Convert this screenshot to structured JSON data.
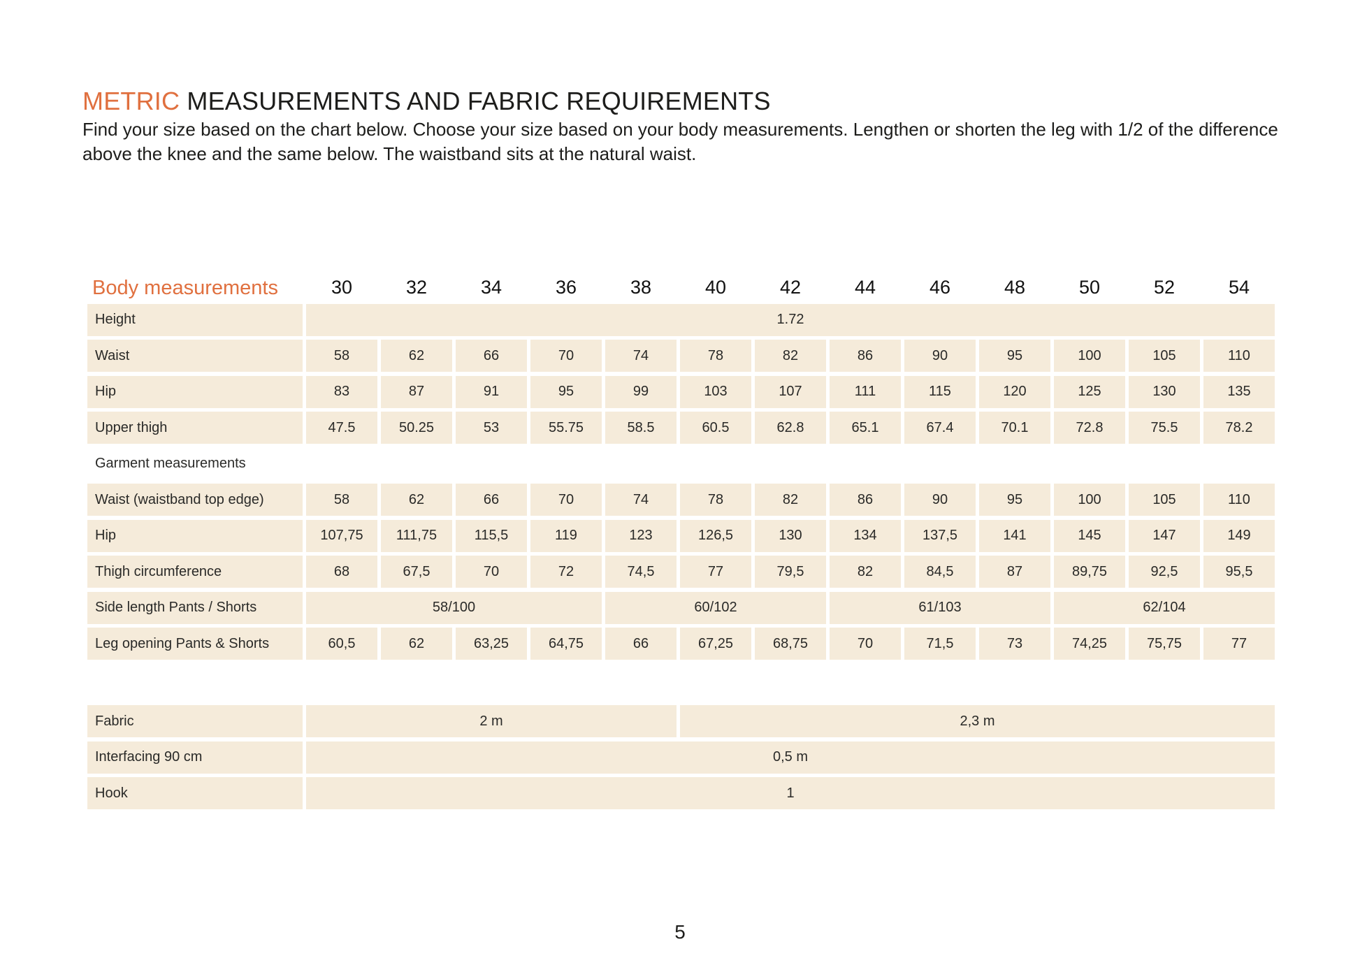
{
  "title": {
    "accent": "METRIC",
    "rest": " MEASUREMENTS AND FABRIC REQUIREMENTS"
  },
  "intro": "Find your size based on the chart below. Choose your size based on your body measurements. Lengthen or shorten the leg with 1/2 of the difference above the knee and the same below. The waistband sits at the natural waist.",
  "colors": {
    "accent": "#e0703f",
    "cell": "#f5ebda"
  },
  "table": {
    "header_label": "Body measurements",
    "sizes": [
      "30",
      "32",
      "34",
      "36",
      "38",
      "40",
      "42",
      "44",
      "46",
      "48",
      "50",
      "52",
      "54"
    ],
    "rows": [
      {
        "label": "Height",
        "cells": [
          {
            "v": "1.72",
            "span": 13
          }
        ]
      },
      {
        "label": "Waist",
        "cells": [
          {
            "v": "58"
          },
          {
            "v": "62"
          },
          {
            "v": "66"
          },
          {
            "v": "70"
          },
          {
            "v": "74"
          },
          {
            "v": "78"
          },
          {
            "v": "82"
          },
          {
            "v": "86"
          },
          {
            "v": "90"
          },
          {
            "v": "95"
          },
          {
            "v": "100"
          },
          {
            "v": "105"
          },
          {
            "v": "110"
          }
        ]
      },
      {
        "label": "Hip",
        "cells": [
          {
            "v": "83"
          },
          {
            "v": "87"
          },
          {
            "v": "91"
          },
          {
            "v": "95"
          },
          {
            "v": "99"
          },
          {
            "v": "103"
          },
          {
            "v": "107"
          },
          {
            "v": "111"
          },
          {
            "v": "115"
          },
          {
            "v": "120"
          },
          {
            "v": "125"
          },
          {
            "v": "130"
          },
          {
            "v": "135"
          }
        ]
      },
      {
        "label": "Upper thigh",
        "cells": [
          {
            "v": "47.5"
          },
          {
            "v": "50.25"
          },
          {
            "v": "53"
          },
          {
            "v": "55.75"
          },
          {
            "v": "58.5"
          },
          {
            "v": "60.5"
          },
          {
            "v": "62.8"
          },
          {
            "v": "65.1"
          },
          {
            "v": "67.4"
          },
          {
            "v": "70.1"
          },
          {
            "v": "72.8"
          },
          {
            "v": "75.5"
          },
          {
            "v": "78.2"
          }
        ]
      },
      {
        "label": "Garment measurements",
        "section": true,
        "cells": []
      },
      {
        "label": "Waist (waistband top edge)",
        "cells": [
          {
            "v": "58"
          },
          {
            "v": "62"
          },
          {
            "v": "66"
          },
          {
            "v": "70"
          },
          {
            "v": "74"
          },
          {
            "v": "78"
          },
          {
            "v": "82"
          },
          {
            "v": "86"
          },
          {
            "v": "90"
          },
          {
            "v": "95"
          },
          {
            "v": "100"
          },
          {
            "v": "105"
          },
          {
            "v": "110"
          }
        ]
      },
      {
        "label": "Hip",
        "cells": [
          {
            "v": "107,75"
          },
          {
            "v": "111,75"
          },
          {
            "v": "115,5"
          },
          {
            "v": "119"
          },
          {
            "v": "123"
          },
          {
            "v": "126,5"
          },
          {
            "v": "130"
          },
          {
            "v": "134"
          },
          {
            "v": "137,5"
          },
          {
            "v": "141"
          },
          {
            "v": "145"
          },
          {
            "v": "147"
          },
          {
            "v": "149"
          }
        ]
      },
      {
        "label": "Thigh circumference",
        "cells": [
          {
            "v": "68"
          },
          {
            "v": "67,5"
          },
          {
            "v": "70"
          },
          {
            "v": "72"
          },
          {
            "v": "74,5"
          },
          {
            "v": "77"
          },
          {
            "v": "79,5"
          },
          {
            "v": "82"
          },
          {
            "v": "84,5"
          },
          {
            "v": "87"
          },
          {
            "v": "89,75"
          },
          {
            "v": "92,5"
          },
          {
            "v": "95,5"
          }
        ]
      },
      {
        "label": "Side length Pants / Shorts",
        "cells": [
          {
            "v": "58/100",
            "span": 4
          },
          {
            "v": "60/102",
            "span": 3
          },
          {
            "v": "61/103",
            "span": 3
          },
          {
            "v": "62/104",
            "span": 3
          }
        ]
      },
      {
        "label": "Leg opening Pants & Shorts",
        "cells": [
          {
            "v": "60,5"
          },
          {
            "v": "62"
          },
          {
            "v": "63,25"
          },
          {
            "v": "64,75"
          },
          {
            "v": "66"
          },
          {
            "v": "67,25"
          },
          {
            "v": "68,75"
          },
          {
            "v": "70"
          },
          {
            "v": "71,5"
          },
          {
            "v": "73"
          },
          {
            "v": "74,25"
          },
          {
            "v": "75,75"
          },
          {
            "v": "77"
          }
        ]
      },
      {
        "spacer": true,
        "cells": []
      },
      {
        "label": "Fabric",
        "cells": [
          {
            "v": "2 m",
            "span": 5
          },
          {
            "v": "2,3 m",
            "span": 8
          }
        ]
      },
      {
        "label": "Interfacing 90 cm",
        "cells": [
          {
            "v": "0,5 m",
            "span": 13
          }
        ]
      },
      {
        "label": "Hook",
        "cells": [
          {
            "v": "1",
            "span": 13
          }
        ]
      }
    ]
  },
  "page_number": "5"
}
